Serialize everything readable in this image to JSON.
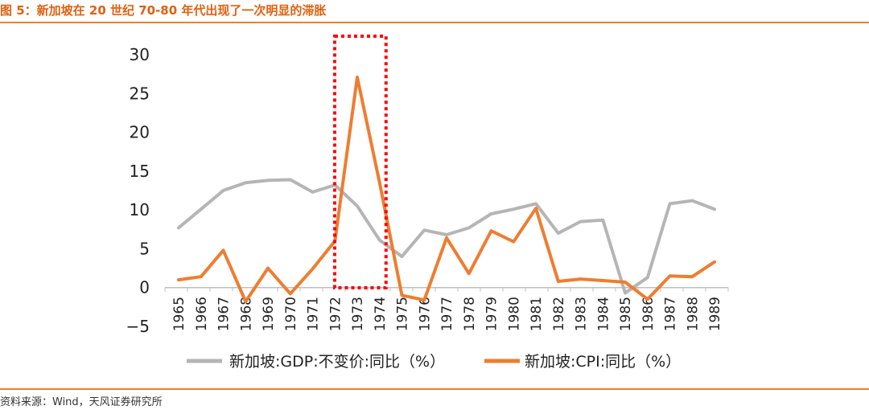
{
  "header": {
    "title": "图 5：新加坡在 20 世纪 70-80 年代出现了一次明显的滞胀"
  },
  "footer": {
    "source": "资料来源：Wind，天风证券研究所"
  },
  "colors": {
    "accent": "#e8822c",
    "title": "#e06010",
    "gdp_series": "#b5b5b5",
    "cpi_series": "#ee7d31",
    "highlight_box": "#ff0000"
  },
  "chart_data": {
    "type": "line",
    "title": "",
    "xlabel": "",
    "ylabel": "",
    "x": [
      "1965",
      "1966",
      "1967",
      "1968",
      "1969",
      "1970",
      "1971",
      "1972",
      "1973",
      "1974",
      "1975",
      "1976",
      "1977",
      "1978",
      "1979",
      "1980",
      "1981",
      "1982",
      "1983",
      "1984",
      "1985",
      "1986",
      "1987",
      "1988",
      "1989"
    ],
    "ylim": [
      -5,
      30
    ],
    "yticks": [
      "30",
      "25",
      "20",
      "15",
      "10",
      "5",
      "0",
      "−5"
    ],
    "ytick_values": [
      30,
      25,
      20,
      15,
      10,
      5,
      0,
      -5
    ],
    "grid": false,
    "legend_position": "bottom",
    "series": [
      {
        "name": "新加坡:GDP:不变价:同比（%）",
        "color": "#b5b5b5",
        "values": [
          7.7,
          10.1,
          12.5,
          13.5,
          13.8,
          13.9,
          12.3,
          13.2,
          10.5,
          6.1,
          4.0,
          7.4,
          6.8,
          7.7,
          9.5,
          10.1,
          10.8,
          7.0,
          8.5,
          8.7,
          -0.7,
          1.3,
          10.8,
          11.2,
          10.1
        ]
      },
      {
        "name": "新加坡:CPI:同比（%）",
        "color": "#ee7d31",
        "values": [
          1.0,
          1.4,
          4.8,
          -1.8,
          2.5,
          -0.8,
          2.4,
          6.0,
          27.1,
          13.5,
          -1.0,
          -1.6,
          6.4,
          1.8,
          7.3,
          5.9,
          10.2,
          0.8,
          1.1,
          0.9,
          0.7,
          -1.5,
          1.5,
          1.4,
          3.3
        ]
      }
    ],
    "highlight": {
      "x_range": [
        "1973",
        "1974"
      ]
    }
  }
}
